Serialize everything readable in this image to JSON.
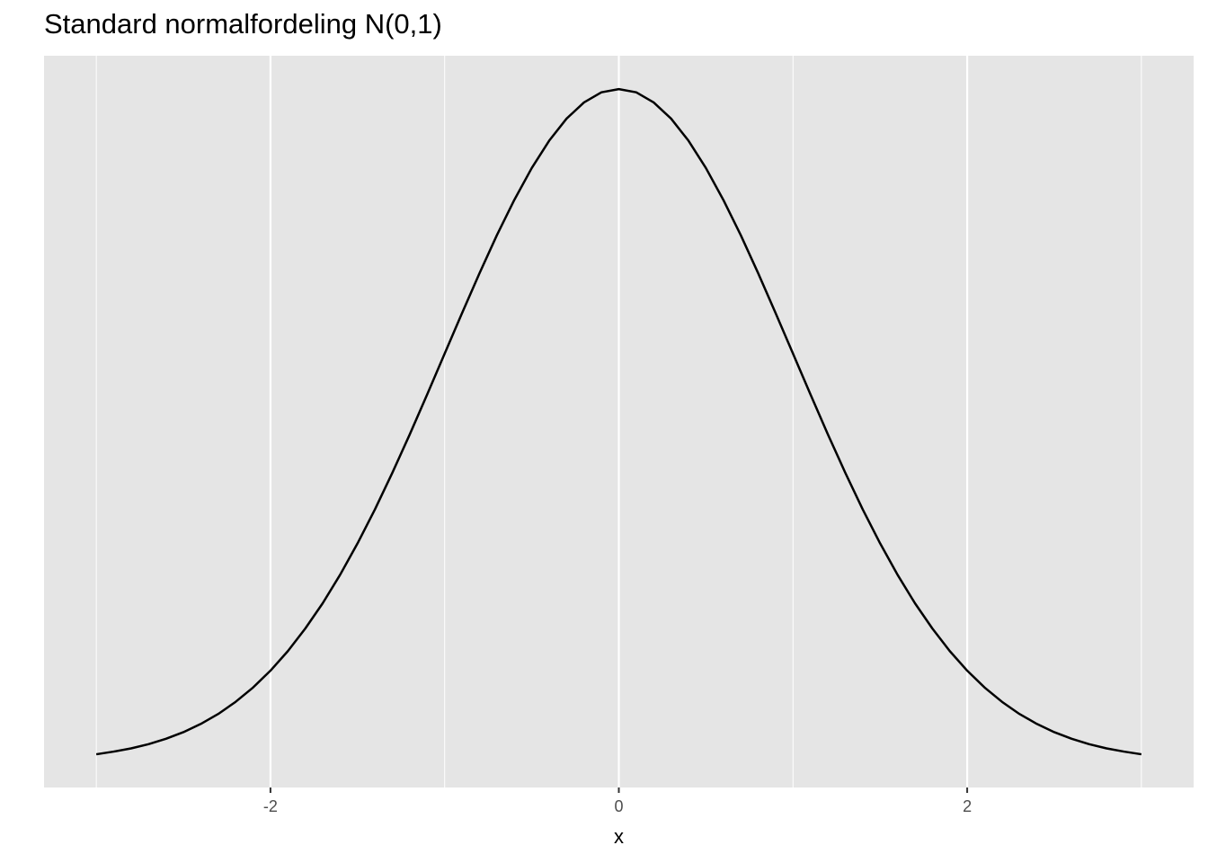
{
  "chart_data": {
    "type": "line",
    "title": "Standard normalfordeling N(0,1)",
    "x_label": "x",
    "x": [
      -3.0,
      -2.9,
      -2.8,
      -2.7,
      -2.6,
      -2.5,
      -2.4,
      -2.3,
      -2.2,
      -2.1,
      -2.0,
      -1.9,
      -1.8,
      -1.7,
      -1.6,
      -1.5,
      -1.4,
      -1.3,
      -1.2,
      -1.1,
      -1.0,
      -0.9,
      -0.8,
      -0.7,
      -0.6,
      -0.5,
      -0.4,
      -0.3,
      -0.2,
      -0.1,
      0.0,
      0.1,
      0.2,
      0.3,
      0.4,
      0.5,
      0.6,
      0.7,
      0.8,
      0.9,
      1.0,
      1.1,
      1.2,
      1.3,
      1.4,
      1.5,
      1.6,
      1.7,
      1.8,
      1.9,
      2.0,
      2.1,
      2.2,
      2.3,
      2.4,
      2.5,
      2.6,
      2.7,
      2.8,
      2.9,
      3.0
    ],
    "series": [
      {
        "color": "#000000",
        "values": [
          0.0044,
          0.006,
          0.0079,
          0.0104,
          0.0136,
          0.0175,
          0.0224,
          0.0283,
          0.0355,
          0.044,
          0.054,
          0.0656,
          0.079,
          0.094,
          0.1109,
          0.1295,
          0.1497,
          0.1714,
          0.1942,
          0.2179,
          0.242,
          0.2661,
          0.2897,
          0.3123,
          0.3332,
          0.3521,
          0.3683,
          0.3814,
          0.391,
          0.397,
          0.3989,
          0.397,
          0.391,
          0.3814,
          0.3683,
          0.3521,
          0.3332,
          0.3123,
          0.2897,
          0.2661,
          0.242,
          0.2179,
          0.1942,
          0.1714,
          0.1497,
          0.1295,
          0.1109,
          0.094,
          0.079,
          0.0656,
          0.054,
          0.044,
          0.0355,
          0.0283,
          0.0224,
          0.0175,
          0.0136,
          0.0104,
          0.0079,
          0.006,
          0.0044
        ]
      }
    ],
    "xlim": [
      -3.3,
      3.3
    ],
    "xticks": [
      -2,
      0,
      2
    ],
    "xminor": [
      -3,
      -1,
      1,
      3
    ],
    "ylim": [
      -0.0153,
      0.4187
    ],
    "grid": true
  }
}
